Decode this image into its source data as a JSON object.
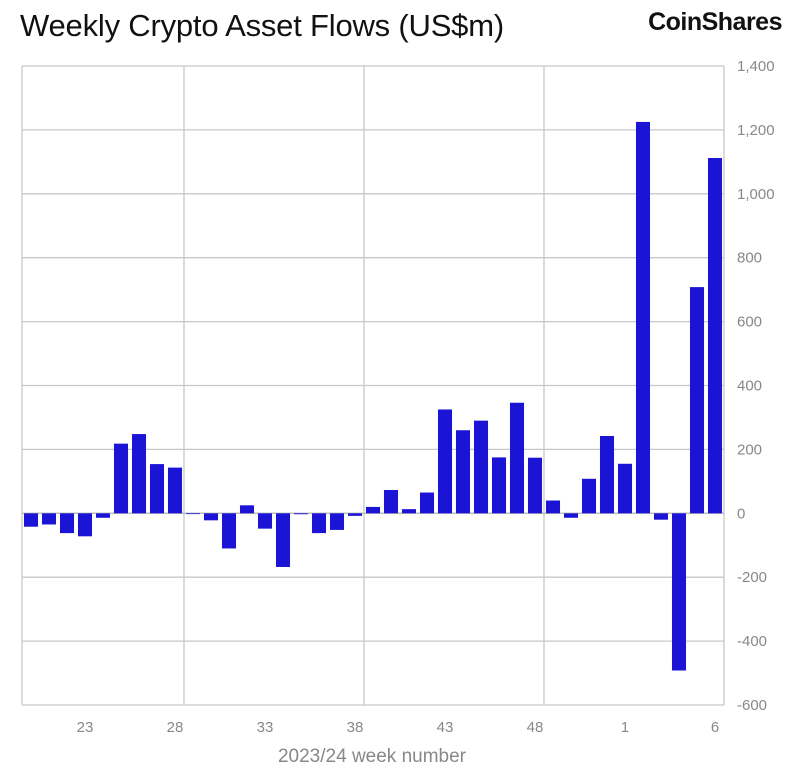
{
  "title": "Weekly Crypto Asset Flows (US$m)",
  "brand": "CoinShares",
  "colors": {
    "bar": "#1c14d4",
    "grid": "#c8c8c8",
    "tick": "#888888"
  },
  "chart_data": {
    "type": "bar",
    "xlabel": "2023/24 week number",
    "ylabel": "",
    "ylim": [
      -600,
      1400
    ],
    "yticks": [
      -600,
      -400,
      -200,
      0,
      200,
      400,
      600,
      800,
      1000,
      1200,
      1400
    ],
    "ytick_labels": [
      "-600",
      "-400",
      "-200",
      "0",
      "200",
      "400",
      "600",
      "800",
      "1,000",
      "1,200",
      "1,400"
    ],
    "grid": true,
    "categories": [
      "20",
      "21",
      "22",
      "23",
      "24",
      "25",
      "26",
      "27",
      "28",
      "29",
      "30",
      "31",
      "32",
      "33",
      "34",
      "35",
      "36",
      "37",
      "38",
      "39",
      "40",
      "41",
      "42",
      "43",
      "44",
      "45",
      "46",
      "47",
      "48",
      "49",
      "50",
      "51",
      "52",
      "1",
      "2",
      "3",
      "4",
      "5",
      "6"
    ],
    "xtick_labels": [
      "23",
      "28",
      "33",
      "38",
      "43",
      "48",
      "1",
      "6"
    ],
    "values": [
      -42,
      -35,
      -62,
      -72,
      -14,
      218,
      248,
      154,
      143,
      0,
      -22,
      -110,
      25,
      -48,
      -168,
      -3,
      -62,
      -52,
      -8,
      20,
      73,
      13,
      65,
      325,
      260,
      290,
      175,
      346,
      174,
      40,
      -14,
      108,
      242,
      155,
      1225,
      -20,
      -492,
      708,
      1112
    ]
  }
}
